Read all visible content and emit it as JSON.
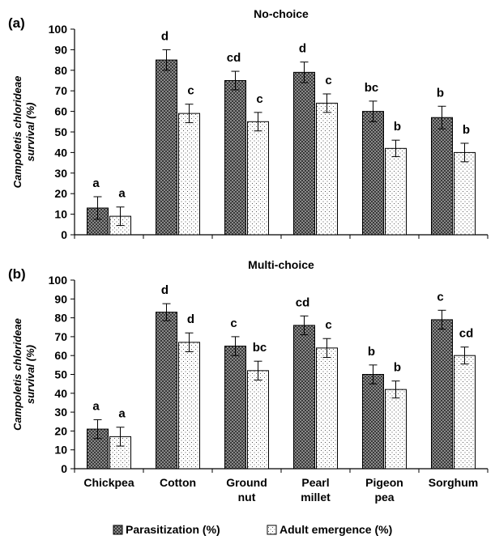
{
  "chart_data": [
    {
      "type": "bar",
      "panel_label": "(a)",
      "title": "No-choice",
      "ylabel": "Campoletis chlorideae survival (%)",
      "xlabel": "",
      "ylim": [
        0,
        100
      ],
      "yticks": [
        0,
        10,
        20,
        30,
        40,
        50,
        60,
        70,
        80,
        90,
        100
      ],
      "categories": [
        "Chickpea",
        "Cotton",
        "Ground nut",
        "Pearl millet",
        "Pigeon pea",
        "Sorghum"
      ],
      "series": [
        {
          "name": "Parasitization (%)",
          "values": [
            13,
            85,
            75,
            79,
            60,
            57
          ],
          "errors": [
            5.5,
            5,
            4.5,
            5,
            5,
            5.5
          ],
          "letters": [
            "a",
            "d",
            "cd",
            "d",
            "bc",
            "b"
          ]
        },
        {
          "name": "Adult emergence (%)",
          "values": [
            9,
            59,
            55,
            64,
            42,
            40
          ],
          "errors": [
            4.5,
            4.5,
            4.5,
            4.5,
            4,
            4.5
          ],
          "letters": [
            "a",
            "c",
            "c",
            "c",
            "b",
            "b"
          ]
        }
      ]
    },
    {
      "type": "bar",
      "panel_label": "(b)",
      "title": "Multi-choice",
      "ylabel": "Campoletis chlorideae survival (%)",
      "xlabel": "",
      "ylim": [
        0,
        100
      ],
      "yticks": [
        0,
        10,
        20,
        30,
        40,
        50,
        60,
        70,
        80,
        90,
        100
      ],
      "categories": [
        "Chickpea",
        "Cotton",
        "Ground nut",
        "Pearl millet",
        "Pigeon pea",
        "Sorghum"
      ],
      "category_lines": [
        [
          "Chickpea"
        ],
        [
          "Cotton"
        ],
        [
          "Ground",
          "nut"
        ],
        [
          "Pearl",
          "millet"
        ],
        [
          "Pigeon",
          "pea"
        ],
        [
          "Sorghum"
        ]
      ],
      "series": [
        {
          "name": "Parasitization (%)",
          "values": [
            21,
            83,
            65,
            76,
            50,
            79
          ],
          "errors": [
            5,
            4.5,
            5,
            5,
            5,
            5
          ],
          "letters": [
            "a",
            "d",
            "c",
            "cd",
            "b",
            "c"
          ]
        },
        {
          "name": "Adult emergence (%)",
          "values": [
            17,
            67,
            52,
            64,
            42,
            60
          ],
          "errors": [
            5,
            5,
            5,
            5,
            4.5,
            4.5
          ],
          "letters": [
            "a",
            "d",
            "bc",
            "c",
            "b",
            "cd"
          ]
        }
      ]
    }
  ],
  "legend": {
    "items": [
      {
        "name": "Parasitization (%)",
        "pattern": "dark-crosshatch"
      },
      {
        "name": "Adult emergence (%)",
        "pattern": "light-dots"
      }
    ]
  },
  "colors": {
    "bar_outline": "#000000",
    "parasitization_fill": "#555555",
    "emergence_fill": "#ffffff"
  }
}
